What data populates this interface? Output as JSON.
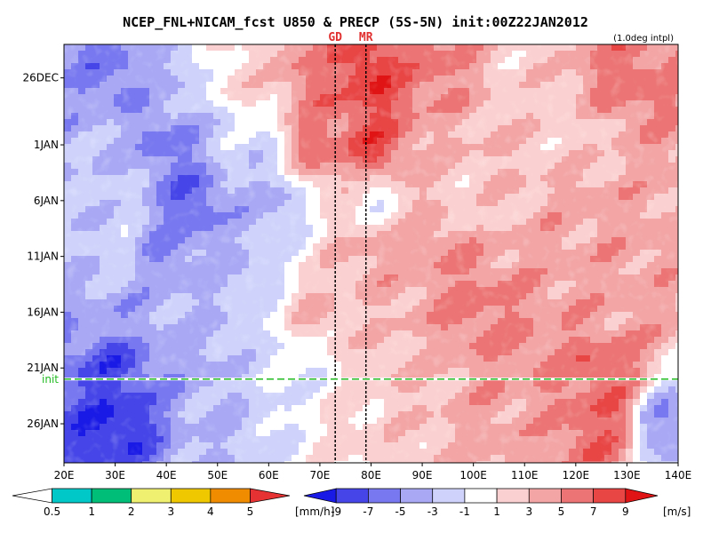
{
  "chart_data": {
    "type": "heatmap",
    "title": "NCEP_FNL+NICAM_fcst U850 & PRECP (5S-5N) init:00Z22JAN2012",
    "note": "(1.0deg intpl)",
    "x_ticks": [
      "20E",
      "30E",
      "40E",
      "50E",
      "60E",
      "70E",
      "80E",
      "90E",
      "100E",
      "110E",
      "120E",
      "130E",
      "140E"
    ],
    "x_range": [
      20,
      140
    ],
    "y_ticks": [
      "26DEC",
      "1JAN",
      "6JAN",
      "11JAN",
      "16JAN",
      "21JAN",
      "26JAN"
    ],
    "y_tick_days": [
      0,
      6,
      11,
      16,
      21,
      26,
      31
    ],
    "y_range_days": [
      -3,
      34.5
    ],
    "init_label": "init",
    "init_day": 27.0,
    "markers": [
      {
        "label": "GD",
        "lon": 73
      },
      {
        "label": "MR",
        "lon": 79
      }
    ],
    "u850_bins": [
      -9,
      -7,
      -5,
      -3,
      -1,
      1,
      3,
      5,
      7,
      9
    ],
    "u850_unit": "[m/s]",
    "u850_colors": [
      "#1a1ae6",
      "#4646e8",
      "#7878f0",
      "#a8a8f5",
      "#cfd3fb",
      "#ffffff",
      "#fbd0d0",
      "#f3a5a5",
      "#ec7474",
      "#e84545",
      "#e01414"
    ],
    "precip_bins": [
      "0.5",
      "1",
      "2",
      "3",
      "4",
      "5"
    ],
    "precip_unit": "[mm/h]",
    "precip_colors": [
      "#ffffff",
      "#00c8c8",
      "#00be78",
      "#f0f070",
      "#f0c800",
      "#f08c00",
      "#e63232"
    ],
    "u850_field": [
      {
        "lon": 30,
        "day": 0,
        "u": -6
      },
      {
        "lon": 40,
        "day": 0,
        "u": -3
      },
      {
        "lon": 55,
        "day": 0,
        "u": 2
      },
      {
        "lon": 70,
        "day": 0,
        "u": 6
      },
      {
        "lon": 80,
        "day": 0,
        "u": 9
      },
      {
        "lon": 90,
        "day": 0,
        "u": 6
      },
      {
        "lon": 110,
        "day": 0,
        "u": 2
      },
      {
        "lon": 130,
        "day": 0,
        "u": 6
      },
      {
        "lon": 30,
        "day": 6,
        "u": -3
      },
      {
        "lon": 40,
        "day": 6,
        "u": -6
      },
      {
        "lon": 55,
        "day": 6,
        "u": -2
      },
      {
        "lon": 70,
        "day": 6,
        "u": 6
      },
      {
        "lon": 80,
        "day": 6,
        "u": 8
      },
      {
        "lon": 95,
        "day": 6,
        "u": 3
      },
      {
        "lon": 120,
        "day": 6,
        "u": 2
      },
      {
        "lon": 30,
        "day": 11,
        "u": -2
      },
      {
        "lon": 45,
        "day": 11,
        "u": -7
      },
      {
        "lon": 60,
        "day": 11,
        "u": -4
      },
      {
        "lon": 80,
        "day": 11,
        "u": 0
      },
      {
        "lon": 100,
        "day": 11,
        "u": 2
      },
      {
        "lon": 125,
        "day": 11,
        "u": 4
      },
      {
        "lon": 30,
        "day": 16,
        "u": -2
      },
      {
        "lon": 40,
        "day": 16,
        "u": -5
      },
      {
        "lon": 55,
        "day": 16,
        "u": -3
      },
      {
        "lon": 80,
        "day": 16,
        "u": 4
      },
      {
        "lon": 95,
        "day": 16,
        "u": 5
      },
      {
        "lon": 120,
        "day": 16,
        "u": 4
      },
      {
        "lon": 30,
        "day": 21,
        "u": -4
      },
      {
        "lon": 45,
        "day": 21,
        "u": -3
      },
      {
        "lon": 70,
        "day": 21,
        "u": 3
      },
      {
        "lon": 100,
        "day": 21,
        "u": 6
      },
      {
        "lon": 125,
        "day": 21,
        "u": 4
      },
      {
        "lon": 30,
        "day": 26,
        "u": -8
      },
      {
        "lon": 45,
        "day": 26,
        "u": -4
      },
      {
        "lon": 65,
        "day": 26,
        "u": -1
      },
      {
        "lon": 90,
        "day": 26,
        "u": 3
      },
      {
        "lon": 115,
        "day": 26,
        "u": 5
      },
      {
        "lon": 125,
        "day": 26,
        "u": 7
      },
      {
        "lon": 30,
        "day": 31,
        "u": -9
      },
      {
        "lon": 50,
        "day": 31,
        "u": -3
      },
      {
        "lon": 80,
        "day": 31,
        "u": 2
      },
      {
        "lon": 110,
        "day": 31,
        "u": 4
      },
      {
        "lon": 125,
        "day": 31,
        "u": 7
      },
      {
        "lon": 138,
        "day": 31,
        "u": -5
      }
    ]
  }
}
